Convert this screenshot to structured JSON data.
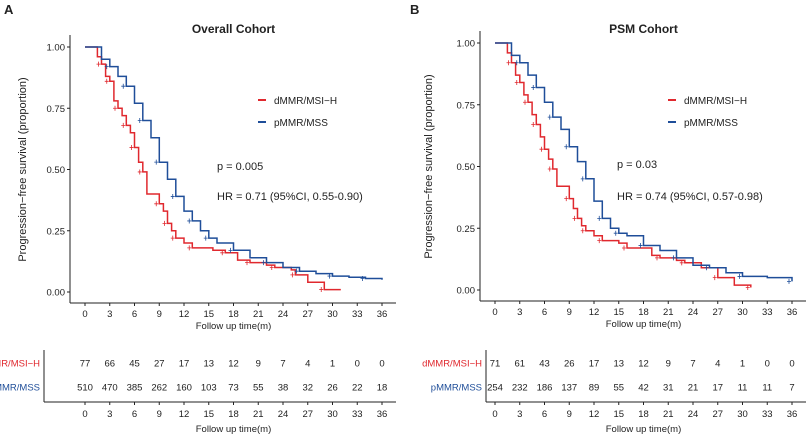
{
  "chart_data": [
    {
      "type": "line",
      "step": true,
      "panel_label": "A",
      "title": "Overall Cohort",
      "xlabel": "Follow up time(m)",
      "ylabel": "Progression−free survival (proportion)",
      "xlim": [
        0,
        36
      ],
      "ylim": [
        0,
        1
      ],
      "xticks": [
        0,
        3,
        6,
        9,
        12,
        15,
        18,
        21,
        24,
        27,
        30,
        33,
        36
      ],
      "yticks": [
        "0.00",
        "0.25",
        "0.50",
        "0.75",
        "1.00"
      ],
      "grid": false,
      "legend_placement": "right",
      "annotations": [
        "p = 0.005",
        "HR = 0.71 (95%CI, 0.55-0.90)"
      ],
      "series": [
        {
          "name": "dMMR/MSI−H",
          "color": "#e0282e",
          "points": [
            [
              0,
              1
            ],
            [
              1.3,
              1
            ],
            [
              1.5,
              0.96
            ],
            [
              2,
              0.93
            ],
            [
              2.5,
              0.88
            ],
            [
              3,
              0.86
            ],
            [
              3.5,
              0.78
            ],
            [
              4,
              0.75
            ],
            [
              4.5,
              0.72
            ],
            [
              5,
              0.68
            ],
            [
              5.5,
              0.65
            ],
            [
              6,
              0.59
            ],
            [
              6.5,
              0.53
            ],
            [
              7,
              0.49
            ],
            [
              7.5,
              0.4
            ],
            [
              9,
              0.36
            ],
            [
              9.5,
              0.33
            ],
            [
              10,
              0.28
            ],
            [
              10.5,
              0.25
            ],
            [
              11,
              0.22
            ],
            [
              12,
              0.2
            ],
            [
              13,
              0.18
            ],
            [
              15.5,
              0.17
            ],
            [
              17,
              0.16
            ],
            [
              18.5,
              0.13
            ],
            [
              20,
              0.12
            ],
            [
              22,
              0.11
            ],
            [
              23,
              0.1
            ],
            [
              25,
              0.09
            ],
            [
              25.5,
              0.07
            ],
            [
              27,
              0.04
            ],
            [
              29,
              0.01
            ],
            [
              31,
              0.01
            ]
          ]
        },
        {
          "name": "pMMR/MSS",
          "color": "#1f4e99",
          "points": [
            [
              0,
              1
            ],
            [
              1.3,
              1
            ],
            [
              2,
              0.95
            ],
            [
              3,
              0.92
            ],
            [
              4,
              0.88
            ],
            [
              5,
              0.84
            ],
            [
              6,
              0.77
            ],
            [
              7,
              0.7
            ],
            [
              8,
              0.63
            ],
            [
              9,
              0.53
            ],
            [
              10,
              0.46
            ],
            [
              11,
              0.39
            ],
            [
              12,
              0.33
            ],
            [
              13,
              0.29
            ],
            [
              14,
              0.25
            ],
            [
              15,
              0.22
            ],
            [
              16,
              0.2
            ],
            [
              18,
              0.17
            ],
            [
              20,
              0.14
            ],
            [
              22,
              0.12
            ],
            [
              24,
              0.1
            ],
            [
              26,
              0.085
            ],
            [
              28,
              0.075
            ],
            [
              30,
              0.065
            ],
            [
              32,
              0.06
            ],
            [
              34,
              0.055
            ],
            [
              36,
              0.05
            ]
          ]
        }
      ],
      "risk_table": {
        "xlabel": "Follow up time(m)",
        "rows": [
          {
            "name": "dMMR/MSI−H",
            "color": "#e0282e",
            "values": [
              77,
              66,
              45,
              27,
              17,
              13,
              12,
              9,
              7,
              4,
              1,
              0,
              0
            ]
          },
          {
            "name": "pMMR/MSS",
            "color": "#1f4e99",
            "values": [
              510,
              470,
              385,
              262,
              160,
              103,
              73,
              55,
              38,
              32,
              26,
              22,
              18
            ]
          }
        ]
      }
    },
    {
      "type": "line",
      "step": true,
      "panel_label": "B",
      "title": "PSM Cohort",
      "xlabel": "Follow up time(m)",
      "ylabel": "Progression−free survival (proportion)",
      "xlim": [
        0,
        36
      ],
      "ylim": [
        0,
        1
      ],
      "xticks": [
        0,
        3,
        6,
        9,
        12,
        15,
        18,
        21,
        24,
        27,
        30,
        33,
        36
      ],
      "yticks": [
        "0.00",
        "0.25",
        "0.50",
        "0.75",
        "1.00"
      ],
      "grid": false,
      "legend_placement": "right",
      "annotations": [
        "p = 0.03",
        "HR = 0.74 (95%CI, 0.57-0.98)"
      ],
      "series": [
        {
          "name": "dMMR/MSI−H",
          "color": "#e0282e",
          "points": [
            [
              0,
              1
            ],
            [
              1.3,
              1
            ],
            [
              1.5,
              0.96
            ],
            [
              2,
              0.92
            ],
            [
              2.5,
              0.87
            ],
            [
              3,
              0.84
            ],
            [
              3.5,
              0.79
            ],
            [
              4,
              0.76
            ],
            [
              4.5,
              0.71
            ],
            [
              5,
              0.67
            ],
            [
              5.5,
              0.62
            ],
            [
              6,
              0.57
            ],
            [
              6.5,
              0.53
            ],
            [
              7,
              0.49
            ],
            [
              7.5,
              0.42
            ],
            [
              9,
              0.37
            ],
            [
              9.5,
              0.33
            ],
            [
              10,
              0.29
            ],
            [
              10.5,
              0.26
            ],
            [
              11,
              0.24
            ],
            [
              12,
              0.22
            ],
            [
              13,
              0.2
            ],
            [
              15,
              0.19
            ],
            [
              16,
              0.17
            ],
            [
              19,
              0.14
            ],
            [
              20,
              0.13
            ],
            [
              22,
              0.12
            ],
            [
              23,
              0.11
            ],
            [
              25,
              0.09
            ],
            [
              27,
              0.05
            ],
            [
              29,
              0.02
            ],
            [
              31,
              0.01
            ]
          ]
        },
        {
          "name": "pMMR/MSS",
          "color": "#1f4e99",
          "points": [
            [
              0,
              1
            ],
            [
              1.3,
              1
            ],
            [
              2,
              0.95
            ],
            [
              3,
              0.92
            ],
            [
              4,
              0.87
            ],
            [
              5,
              0.82
            ],
            [
              6,
              0.76
            ],
            [
              7,
              0.7
            ],
            [
              8,
              0.65
            ],
            [
              9,
              0.58
            ],
            [
              10,
              0.52
            ],
            [
              11,
              0.45
            ],
            [
              12,
              0.36
            ],
            [
              13,
              0.29
            ],
            [
              14,
              0.25
            ],
            [
              15,
              0.23
            ],
            [
              16,
              0.22
            ],
            [
              18,
              0.18
            ],
            [
              20,
              0.16
            ],
            [
              22,
              0.13
            ],
            [
              24,
              0.1
            ],
            [
              26,
              0.09
            ],
            [
              28,
              0.07
            ],
            [
              30,
              0.055
            ],
            [
              33,
              0.05
            ],
            [
              36,
              0.035
            ]
          ]
        }
      ],
      "risk_table": {
        "xlabel": "Follow up time(m)",
        "rows": [
          {
            "name": "dMMR/MSI−H",
            "color": "#e0282e",
            "values": [
              71,
              61,
              43,
              26,
              17,
              13,
              12,
              9,
              7,
              4,
              1,
              0,
              0
            ]
          },
          {
            "name": "pMMR/MSS",
            "color": "#1f4e99",
            "values": [
              254,
              232,
              186,
              137,
              89,
              55,
              42,
              31,
              21,
              17,
              11,
              11,
              7
            ]
          }
        ]
      }
    }
  ]
}
